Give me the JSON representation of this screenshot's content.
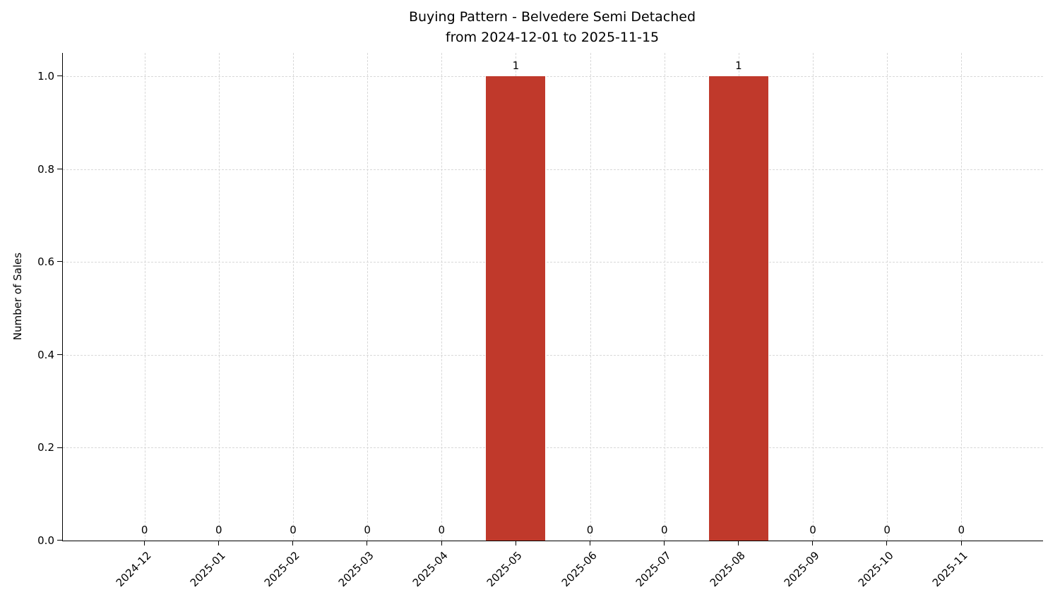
{
  "chart_data": {
    "type": "bar",
    "title": "Buying Pattern - Belvedere Semi Detached",
    "subtitle": "from 2024-12-01 to 2025-11-15",
    "xlabel": "",
    "ylabel": "Number of Sales",
    "categories": [
      "2024-12",
      "2025-01",
      "2025-02",
      "2025-03",
      "2025-04",
      "2025-05",
      "2025-06",
      "2025-07",
      "2025-08",
      "2025-09",
      "2025-10",
      "2025-11"
    ],
    "values": [
      0,
      0,
      0,
      0,
      0,
      1,
      0,
      0,
      1,
      0,
      0,
      0
    ],
    "value_labels": [
      "0",
      "0",
      "0",
      "0",
      "0",
      "1",
      "0",
      "0",
      "1",
      "0",
      "0",
      "0"
    ],
    "yticks": [
      0.0,
      0.2,
      0.4,
      0.6,
      0.8,
      1.0
    ],
    "ylim": [
      0,
      1.05
    ],
    "grid": true,
    "grid_style": "dashed",
    "legend": "none",
    "colors": {
      "bar": "#c0392b",
      "grid": "#d8d8d8",
      "axis": "#000000",
      "text": "#000000",
      "background": "#ffffff"
    }
  }
}
